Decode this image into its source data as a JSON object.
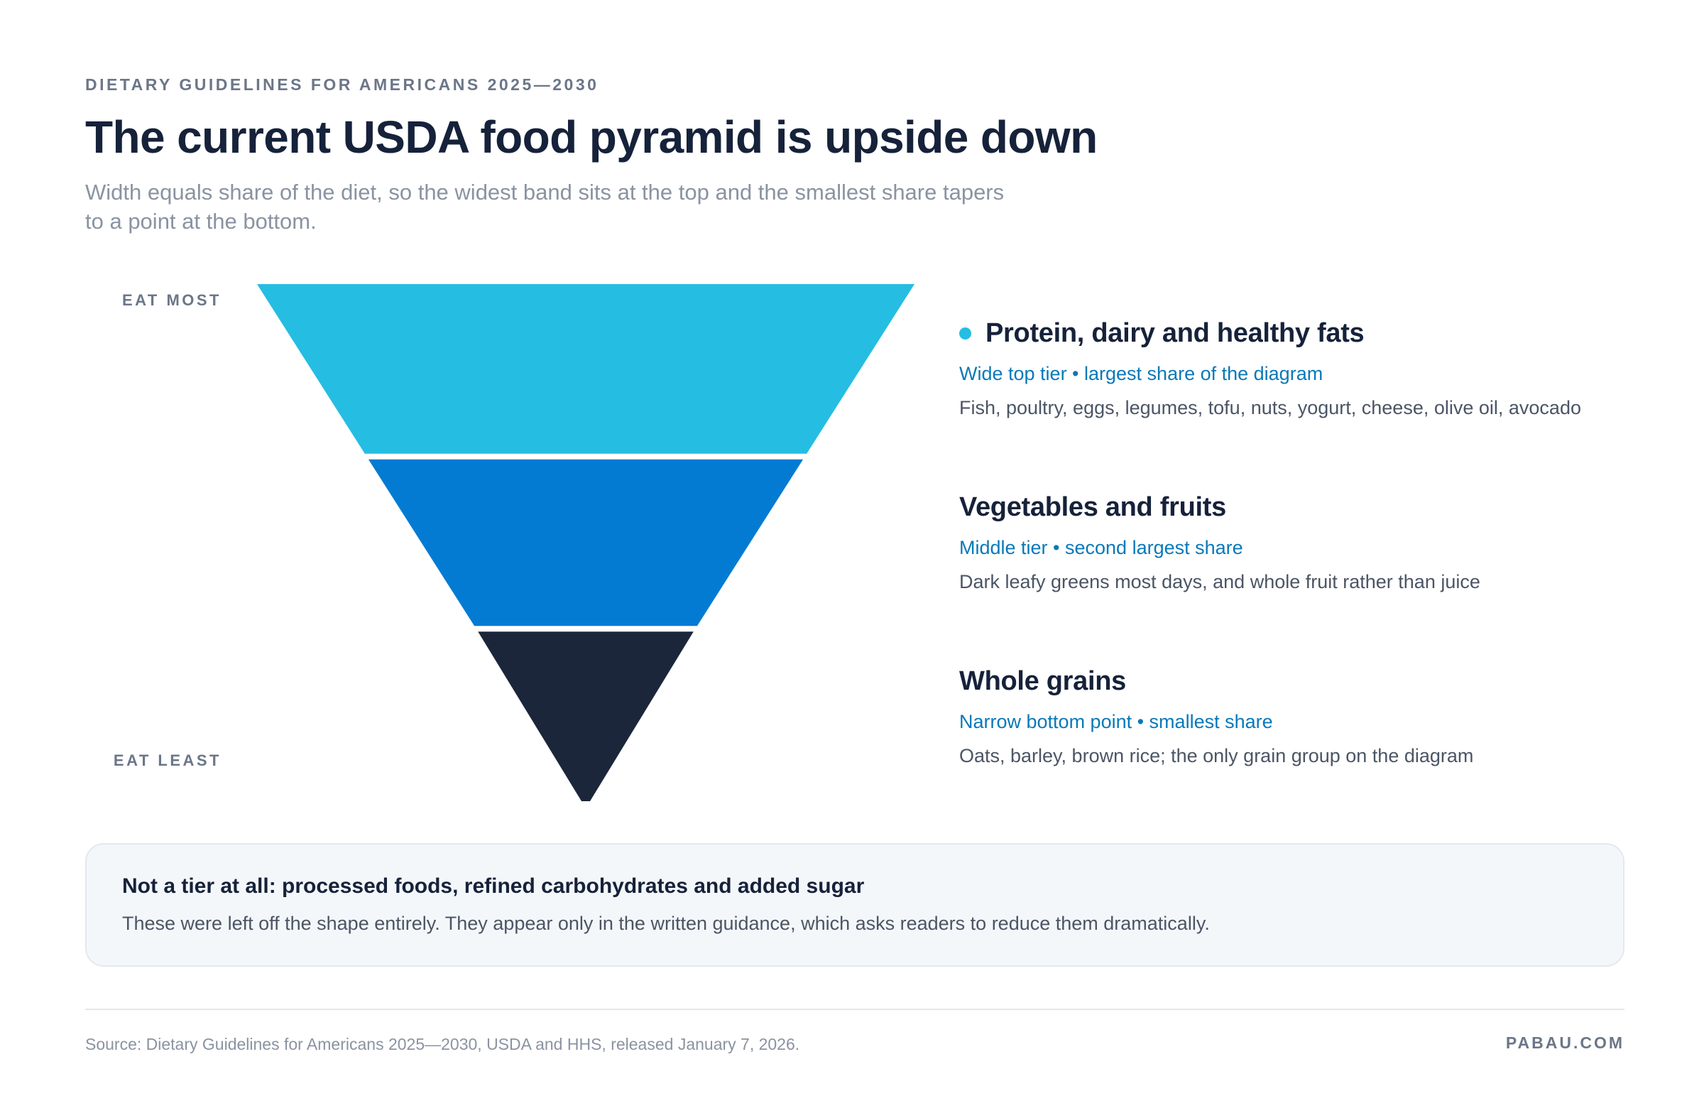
{
  "header": {
    "eyebrow": "DIETARY GUIDELINES FOR AMERICANS 2025—2030",
    "title": "The current USDA food pyramid is upside down",
    "subtitle": "Width equals share of the diet, so the widest band sits at the top and the smallest share tapers to a point at the bottom."
  },
  "axis": {
    "top": "EAT MOST",
    "bottom": "EAT LEAST"
  },
  "tiers": [
    {
      "name": "Protein, dairy and healthy fats",
      "subtitle": "Wide top tier • largest share of the diagram",
      "description": "Fish, poultry, eggs, legumes, tofu, nuts, yogurt, cheese, olive oil, avocado",
      "color": "#25bde2",
      "marker": "dot"
    },
    {
      "name": "Vegetables and fruits",
      "subtitle": "Middle tier • second largest share",
      "description": "Dark leafy greens most days, and whole fruit rather than juice",
      "color": "#047bd3"
    },
    {
      "name": "Whole grains",
      "subtitle": "Narrow bottom point • smallest share",
      "description": "Oats, barley, brown rice; the only grain group on the diagram",
      "color": "#1c263a"
    }
  ],
  "note": {
    "title": "Not a tier at all: processed foods, refined carbohydrates and added sugar",
    "body": "These were left off the shape entirely. They appear only in the written guidance, which asks readers to reduce them dramatically."
  },
  "footer": {
    "source": "Source: Dietary Guidelines for Americans 2025—2030, USDA and HHS, released January 7, 2026.",
    "brand": "PABAU.COM"
  }
}
